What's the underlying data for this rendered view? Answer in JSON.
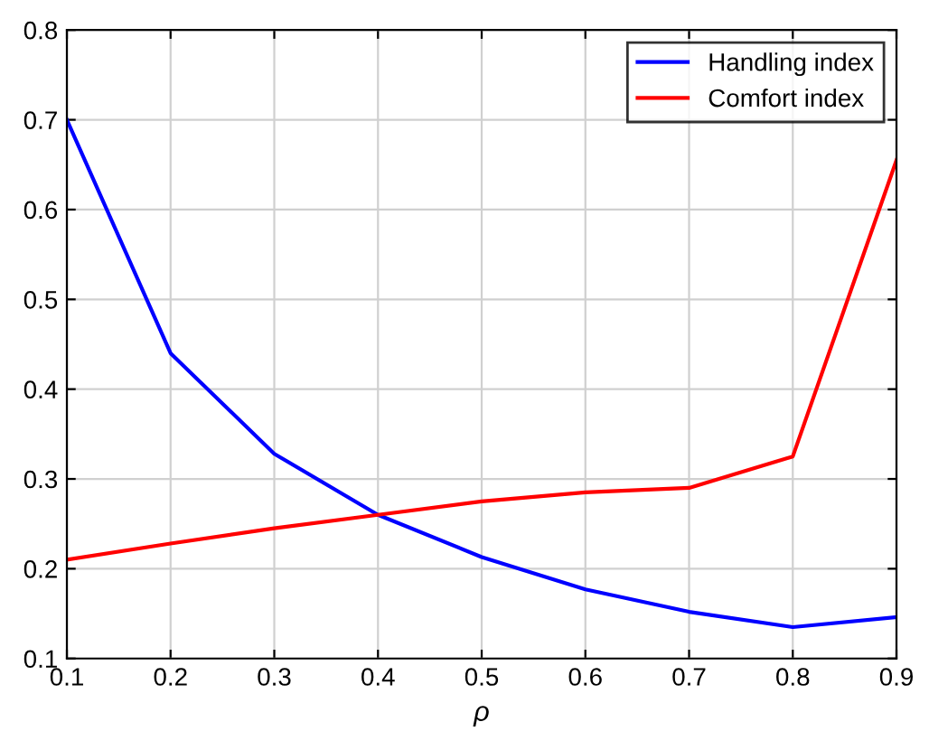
{
  "chart_data": {
    "type": "line",
    "xlabel": "ρ",
    "x": [
      0.1,
      0.2,
      0.3,
      0.4,
      0.5,
      0.6,
      0.7,
      0.8,
      0.9
    ],
    "series": [
      {
        "name": "Handling index",
        "color": "#0000ff",
        "values": [
          0.7,
          0.44,
          0.328,
          0.26,
          0.213,
          0.177,
          0.152,
          0.135,
          0.146
        ]
      },
      {
        "name": "Comfort index",
        "color": "#ff0000",
        "values": [
          0.21,
          0.228,
          0.245,
          0.26,
          0.275,
          0.285,
          0.29,
          0.325,
          0.655
        ]
      }
    ],
    "xlim": [
      0.1,
      0.9
    ],
    "xticks": [
      0.1,
      0.2,
      0.3,
      0.4,
      0.5,
      0.6,
      0.7,
      0.8,
      0.9
    ],
    "ylim": [
      0.1,
      0.8
    ],
    "yticks": [
      0.1,
      0.2,
      0.3,
      0.4,
      0.5,
      0.6,
      0.7,
      0.8
    ],
    "grid": true,
    "legend": "top right",
    "line_style": "solid"
  }
}
